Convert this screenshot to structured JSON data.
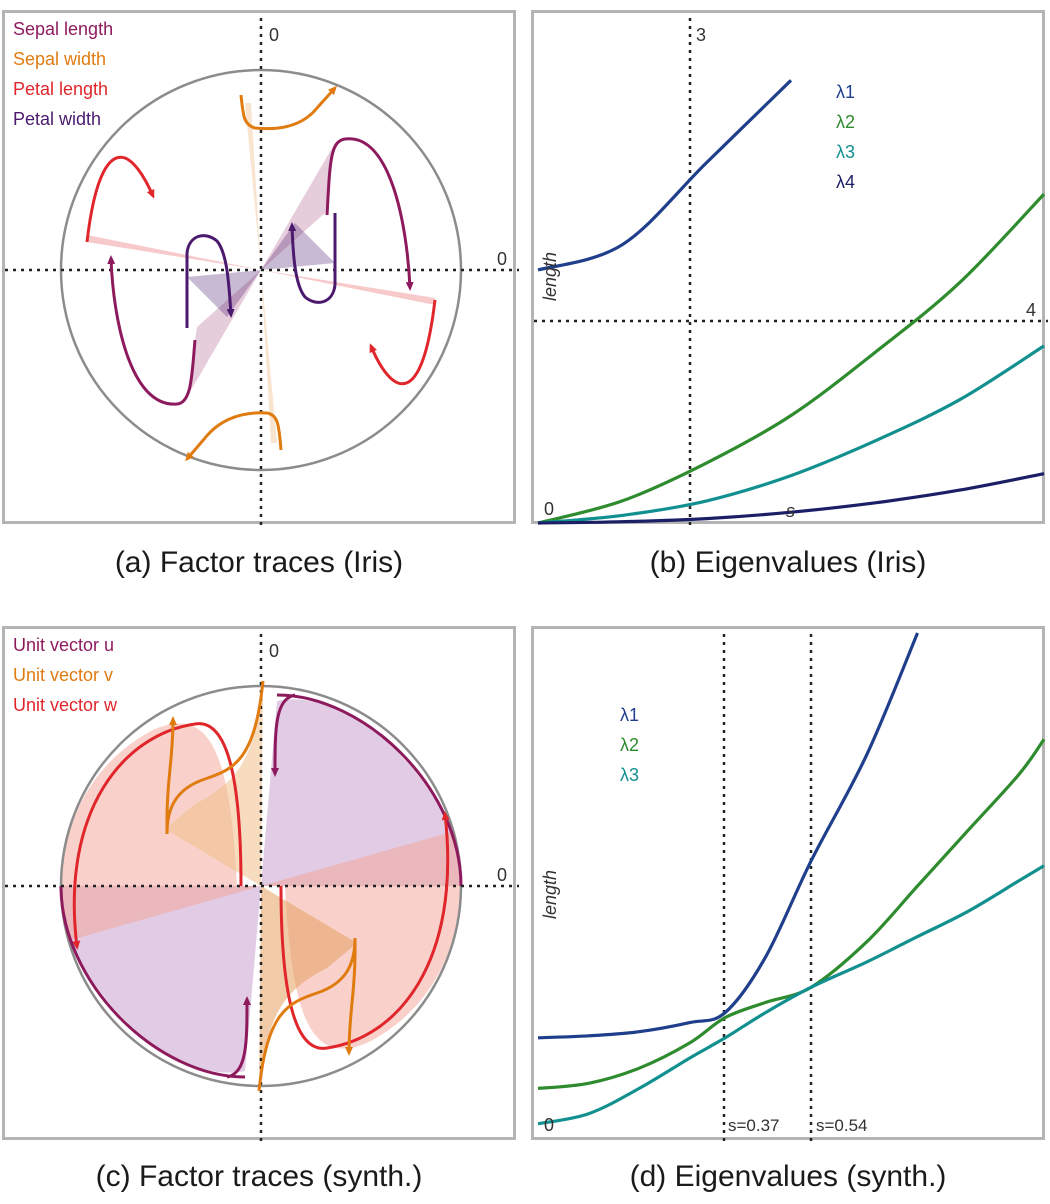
{
  "colors": {
    "sepal_length": "#8e1a5e",
    "sepal_width": "#e07b10",
    "petal_length": "#e0262b",
    "petal_width": "#4b1a6e",
    "lambda1": "#1f3f8c",
    "lambda2": "#2e8b2e",
    "lambda3": "#12908f",
    "lambda4": "#1c1f66",
    "circle": "#8c8c8c",
    "frame": "#b4b4b4"
  },
  "panel_a": {
    "caption": "(a) Factor traces (Iris)",
    "legend": [
      "Sepal length",
      "Sepal width",
      "Petal length",
      "Petal width"
    ],
    "axis_zero_top": "0",
    "axis_zero_right": "0"
  },
  "panel_b": {
    "caption": "(b) Eigenvalues (Iris)",
    "legend": [
      "λ1",
      "λ2",
      "λ3",
      "λ4"
    ],
    "ylabel": "length",
    "xlabel": "s",
    "origin": "0",
    "vline_label": "3",
    "hline_label": "4"
  },
  "panel_c": {
    "caption": "(c) Factor traces (synth.)",
    "legend": [
      "Unit vector u",
      "Unit vector v",
      "Unit vector w"
    ],
    "axis_zero_top": "0",
    "axis_zero_right": "0"
  },
  "panel_d": {
    "caption": "(d) Eigenvalues (synth.)",
    "legend": [
      "λ1",
      "λ2",
      "λ3"
    ],
    "ylabel": "length",
    "origin": "0",
    "vline1_label": "s=0.37",
    "vline2_label": "s=0.54"
  },
  "chart_data": [
    {
      "type": "line",
      "panel": "b",
      "title": "",
      "xlabel": "s",
      "ylabel": "length",
      "xlim": [
        0,
        6
      ],
      "ylim": [
        0,
        8
      ],
      "vline": 3,
      "hline": 4,
      "x": [
        0,
        1,
        2,
        3,
        4,
        5,
        6
      ],
      "series": [
        {
          "name": "λ1",
          "values": [
            4.0,
            4.4,
            5.7,
            7.0,
            null,
            null,
            null
          ]
        },
        {
          "name": "λ2",
          "values": [
            0.0,
            0.35,
            0.95,
            1.7,
            2.7,
            3.8,
            5.2
          ]
        },
        {
          "name": "λ3",
          "values": [
            0.0,
            0.12,
            0.35,
            0.75,
            1.3,
            1.95,
            2.8
          ]
        },
        {
          "name": "λ4",
          "values": [
            0.0,
            0.02,
            0.07,
            0.17,
            0.32,
            0.52,
            0.78
          ]
        }
      ]
    },
    {
      "type": "line",
      "panel": "d",
      "title": "",
      "ylabel": "length",
      "xlim": [
        0,
        1
      ],
      "ylim": [
        0,
        5
      ],
      "vlines": [
        0.37,
        0.54
      ],
      "x": [
        0,
        0.1,
        0.2,
        0.3,
        0.37,
        0.45,
        0.54,
        0.65,
        0.75,
        0.85,
        0.95,
        1.0
      ],
      "series": [
        {
          "name": "λ1",
          "values": [
            1.0,
            1.02,
            1.06,
            1.15,
            1.25,
            1.8,
            2.75,
            3.8,
            5.0,
            null,
            null,
            null
          ]
        },
        {
          "name": "λ2",
          "values": [
            0.5,
            0.55,
            0.7,
            0.95,
            1.2,
            1.35,
            1.5,
            1.95,
            2.5,
            3.05,
            3.6,
            3.95
          ]
        },
        {
          "name": "λ3",
          "values": [
            0.15,
            0.25,
            0.5,
            0.8,
            1.0,
            1.25,
            1.5,
            1.75,
            2.0,
            2.25,
            2.55,
            2.7
          ]
        }
      ]
    }
  ]
}
